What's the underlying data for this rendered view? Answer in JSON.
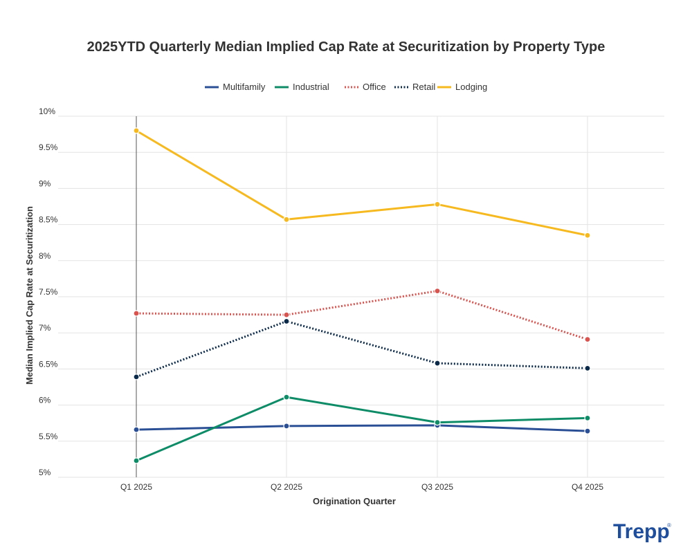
{
  "chart_data": {
    "type": "line",
    "title": "2025YTD Quarterly Median Implied Cap Rate at Securitization by Property Type",
    "xlabel": "Origination Quarter",
    "ylabel": "Median Implied Cap Rate at Securitization",
    "categories": [
      "Q1 2025",
      "Q2 2025",
      "Q3 2025",
      "Q4 2025"
    ],
    "ylim": [
      5,
      10
    ],
    "yticks": [
      5,
      5.5,
      6,
      6.5,
      7,
      7.5,
      8,
      8.5,
      9,
      9.5,
      10
    ],
    "ytick_labels": [
      "5%",
      "5.5%",
      "6%",
      "6.5%",
      "7%",
      "7.5%",
      "8%",
      "8.5%",
      "9%",
      "9.5%",
      "10%"
    ],
    "legend_position": "top-center",
    "grid": true,
    "series": [
      {
        "name": "Multifamily",
        "values": [
          5.66,
          5.71,
          5.72,
          5.64
        ],
        "color": "#2b4f95",
        "dash": "solid"
      },
      {
        "name": "Industrial",
        "values": [
          5.23,
          6.11,
          5.76,
          5.82
        ],
        "color": "#0e8c67",
        "dash": "solid"
      },
      {
        "name": "Office",
        "values": [
          7.27,
          7.25,
          7.58,
          6.91
        ],
        "color": "#d9534f",
        "dash": "dotted"
      },
      {
        "name": "Retail",
        "values": [
          6.39,
          7.16,
          6.58,
          6.51
        ],
        "color": "#0b2a4a",
        "dash": "dotted"
      },
      {
        "name": "Lodging",
        "values": [
          9.8,
          8.57,
          8.78,
          8.35
        ],
        "color": "#f6b91f",
        "dash": "solid"
      }
    ]
  },
  "logo": {
    "text": "Trepp",
    "mark": "®"
  }
}
